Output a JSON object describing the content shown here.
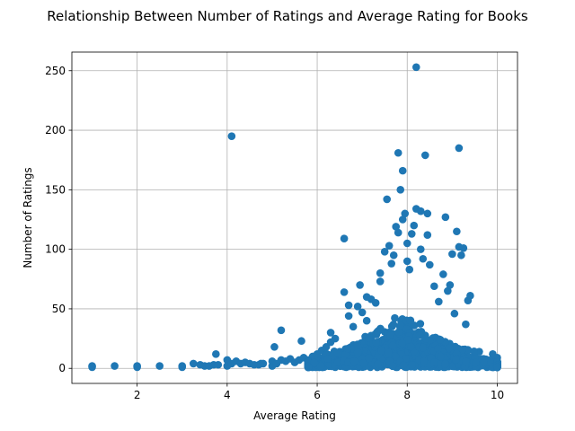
{
  "chart_data": {
    "type": "scatter",
    "title": "Relationship Between Number of Ratings and Average Rating for Books",
    "xlabel": "Average Rating",
    "ylabel": "Number of Ratings",
    "xlim": [
      0.55,
      10.45
    ],
    "ylim": [
      -12.65,
      265.65
    ],
    "xticks": [
      2,
      4,
      6,
      8,
      10
    ],
    "yticks": [
      0,
      50,
      100,
      150,
      200,
      250
    ],
    "grid": true,
    "color": "#1f77b4",
    "points": [
      [
        1.0,
        1
      ],
      [
        1.0,
        2
      ],
      [
        1.5,
        2
      ],
      [
        2.0,
        1
      ],
      [
        2.0,
        2
      ],
      [
        2.5,
        2
      ],
      [
        3.0,
        1
      ],
      [
        3.0,
        2
      ],
      [
        3.25,
        4
      ],
      [
        3.4,
        3
      ],
      [
        3.5,
        2
      ],
      [
        3.6,
        2
      ],
      [
        3.7,
        3
      ],
      [
        3.75,
        12
      ],
      [
        3.8,
        3
      ],
      [
        4.0,
        2
      ],
      [
        4.0,
        7
      ],
      [
        4.1,
        195
      ],
      [
        4.1,
        4
      ],
      [
        4.2,
        6
      ],
      [
        4.3,
        4
      ],
      [
        4.4,
        5
      ],
      [
        4.5,
        4
      ],
      [
        4.6,
        3
      ],
      [
        4.7,
        3
      ],
      [
        4.75,
        4
      ],
      [
        4.8,
        4
      ],
      [
        5.0,
        2
      ],
      [
        5.0,
        6
      ],
      [
        5.05,
        18
      ],
      [
        5.1,
        4
      ],
      [
        5.2,
        32
      ],
      [
        5.2,
        7
      ],
      [
        5.3,
        6
      ],
      [
        5.4,
        8
      ],
      [
        5.5,
        5
      ],
      [
        5.6,
        7
      ],
      [
        5.65,
        23
      ],
      [
        5.7,
        9
      ],
      [
        5.8,
        7
      ],
      [
        5.9,
        10
      ],
      [
        6.0,
        4
      ],
      [
        6.0,
        12
      ],
      [
        6.1,
        15
      ],
      [
        6.2,
        18
      ],
      [
        6.3,
        22
      ],
      [
        6.3,
        30
      ],
      [
        6.4,
        25
      ],
      [
        6.5,
        14
      ],
      [
        6.6,
        109
      ],
      [
        6.6,
        64
      ],
      [
        6.7,
        53
      ],
      [
        6.7,
        44
      ],
      [
        6.8,
        35
      ],
      [
        6.9,
        52
      ],
      [
        6.95,
        70
      ],
      [
        7.0,
        47
      ],
      [
        7.1,
        40
      ],
      [
        7.1,
        60
      ],
      [
        7.2,
        58
      ],
      [
        7.3,
        55
      ],
      [
        7.4,
        80
      ],
      [
        7.4,
        73
      ],
      [
        7.5,
        98
      ],
      [
        7.55,
        142
      ],
      [
        7.6,
        103
      ],
      [
        7.65,
        88
      ],
      [
        7.7,
        95
      ],
      [
        7.75,
        119
      ],
      [
        7.8,
        181
      ],
      [
        7.8,
        114
      ],
      [
        7.85,
        150
      ],
      [
        7.9,
        166
      ],
      [
        7.9,
        125
      ],
      [
        7.95,
        130
      ],
      [
        8.0,
        105
      ],
      [
        8.0,
        90
      ],
      [
        8.05,
        83
      ],
      [
        8.1,
        113
      ],
      [
        8.15,
        120
      ],
      [
        8.2,
        253
      ],
      [
        8.2,
        134
      ],
      [
        8.3,
        132
      ],
      [
        8.3,
        100
      ],
      [
        8.35,
        92
      ],
      [
        8.4,
        179
      ],
      [
        8.45,
        130
      ],
      [
        8.45,
        112
      ],
      [
        8.5,
        87
      ],
      [
        8.6,
        69
      ],
      [
        8.7,
        56
      ],
      [
        8.8,
        79
      ],
      [
        8.85,
        127
      ],
      [
        8.9,
        65
      ],
      [
        8.95,
        70
      ],
      [
        9.0,
        96
      ],
      [
        9.05,
        46
      ],
      [
        9.1,
        115
      ],
      [
        9.15,
        185
      ],
      [
        9.15,
        102
      ],
      [
        9.2,
        95
      ],
      [
        9.25,
        101
      ],
      [
        9.3,
        37
      ],
      [
        9.35,
        57
      ],
      [
        9.4,
        61
      ],
      [
        9.5,
        12
      ],
      [
        9.6,
        14
      ],
      [
        9.7,
        8
      ],
      [
        9.8,
        5
      ],
      [
        9.9,
        12
      ],
      [
        10.0,
        2
      ],
      [
        10.0,
        9
      ]
    ]
  }
}
